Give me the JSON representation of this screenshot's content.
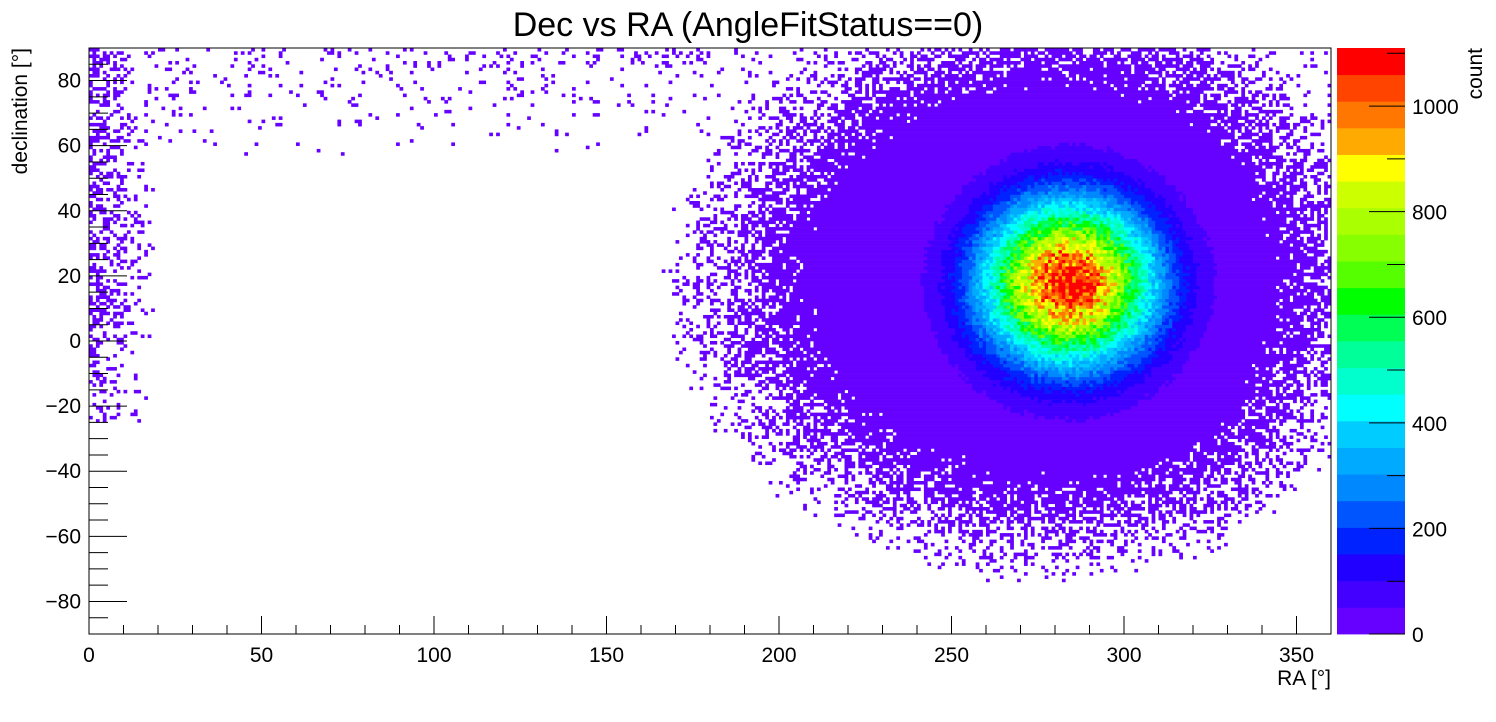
{
  "chart_data": {
    "type": "heatmap",
    "title": "Dec vs RA (AngleFitStatus==0)",
    "xlabel": "RA [°]",
    "ylabel": "declination [°]",
    "zlabel": "count",
    "xlim": [
      0,
      360
    ],
    "ylim": [
      -90,
      90
    ],
    "zlim": [
      0,
      1110
    ],
    "x_ticks": [
      "0",
      "50",
      "100",
      "150",
      "200",
      "250",
      "300",
      "350"
    ],
    "y_ticks": [
      "−80",
      "−60",
      "−40",
      "−20",
      "0",
      "20",
      "40",
      "60",
      "80"
    ],
    "z_ticks": [
      "0",
      "200",
      "400",
      "600",
      "800",
      "1000"
    ],
    "grid": false,
    "palette": [
      "#6600ff",
      "#4400ff",
      "#2200ff",
      "#0022ff",
      "#0055ff",
      "#0088ff",
      "#00aaff",
      "#00ccff",
      "#00ffff",
      "#00ffcc",
      "#00ff99",
      "#00ff55",
      "#00ff00",
      "#55ff00",
      "#88ff00",
      "#aaff00",
      "#ccff00",
      "#ffff00",
      "#ffaa00",
      "#ff7700",
      "#ff4400",
      "#ff0000"
    ],
    "distribution": {
      "peak_ra": 284,
      "peak_dec": 18,
      "peak_count": 1100,
      "core_sigma_ra": 17,
      "core_sigma_dec": 17,
      "halo_radius_ra_min": 75,
      "halo_radius_ra_max": 95,
      "halo_radius_dec": 75,
      "sparse_arc_north_dec_min": 55,
      "sparse_arc_north_dec_max": 90,
      "sparse_edge_ra_max": 20
    }
  }
}
